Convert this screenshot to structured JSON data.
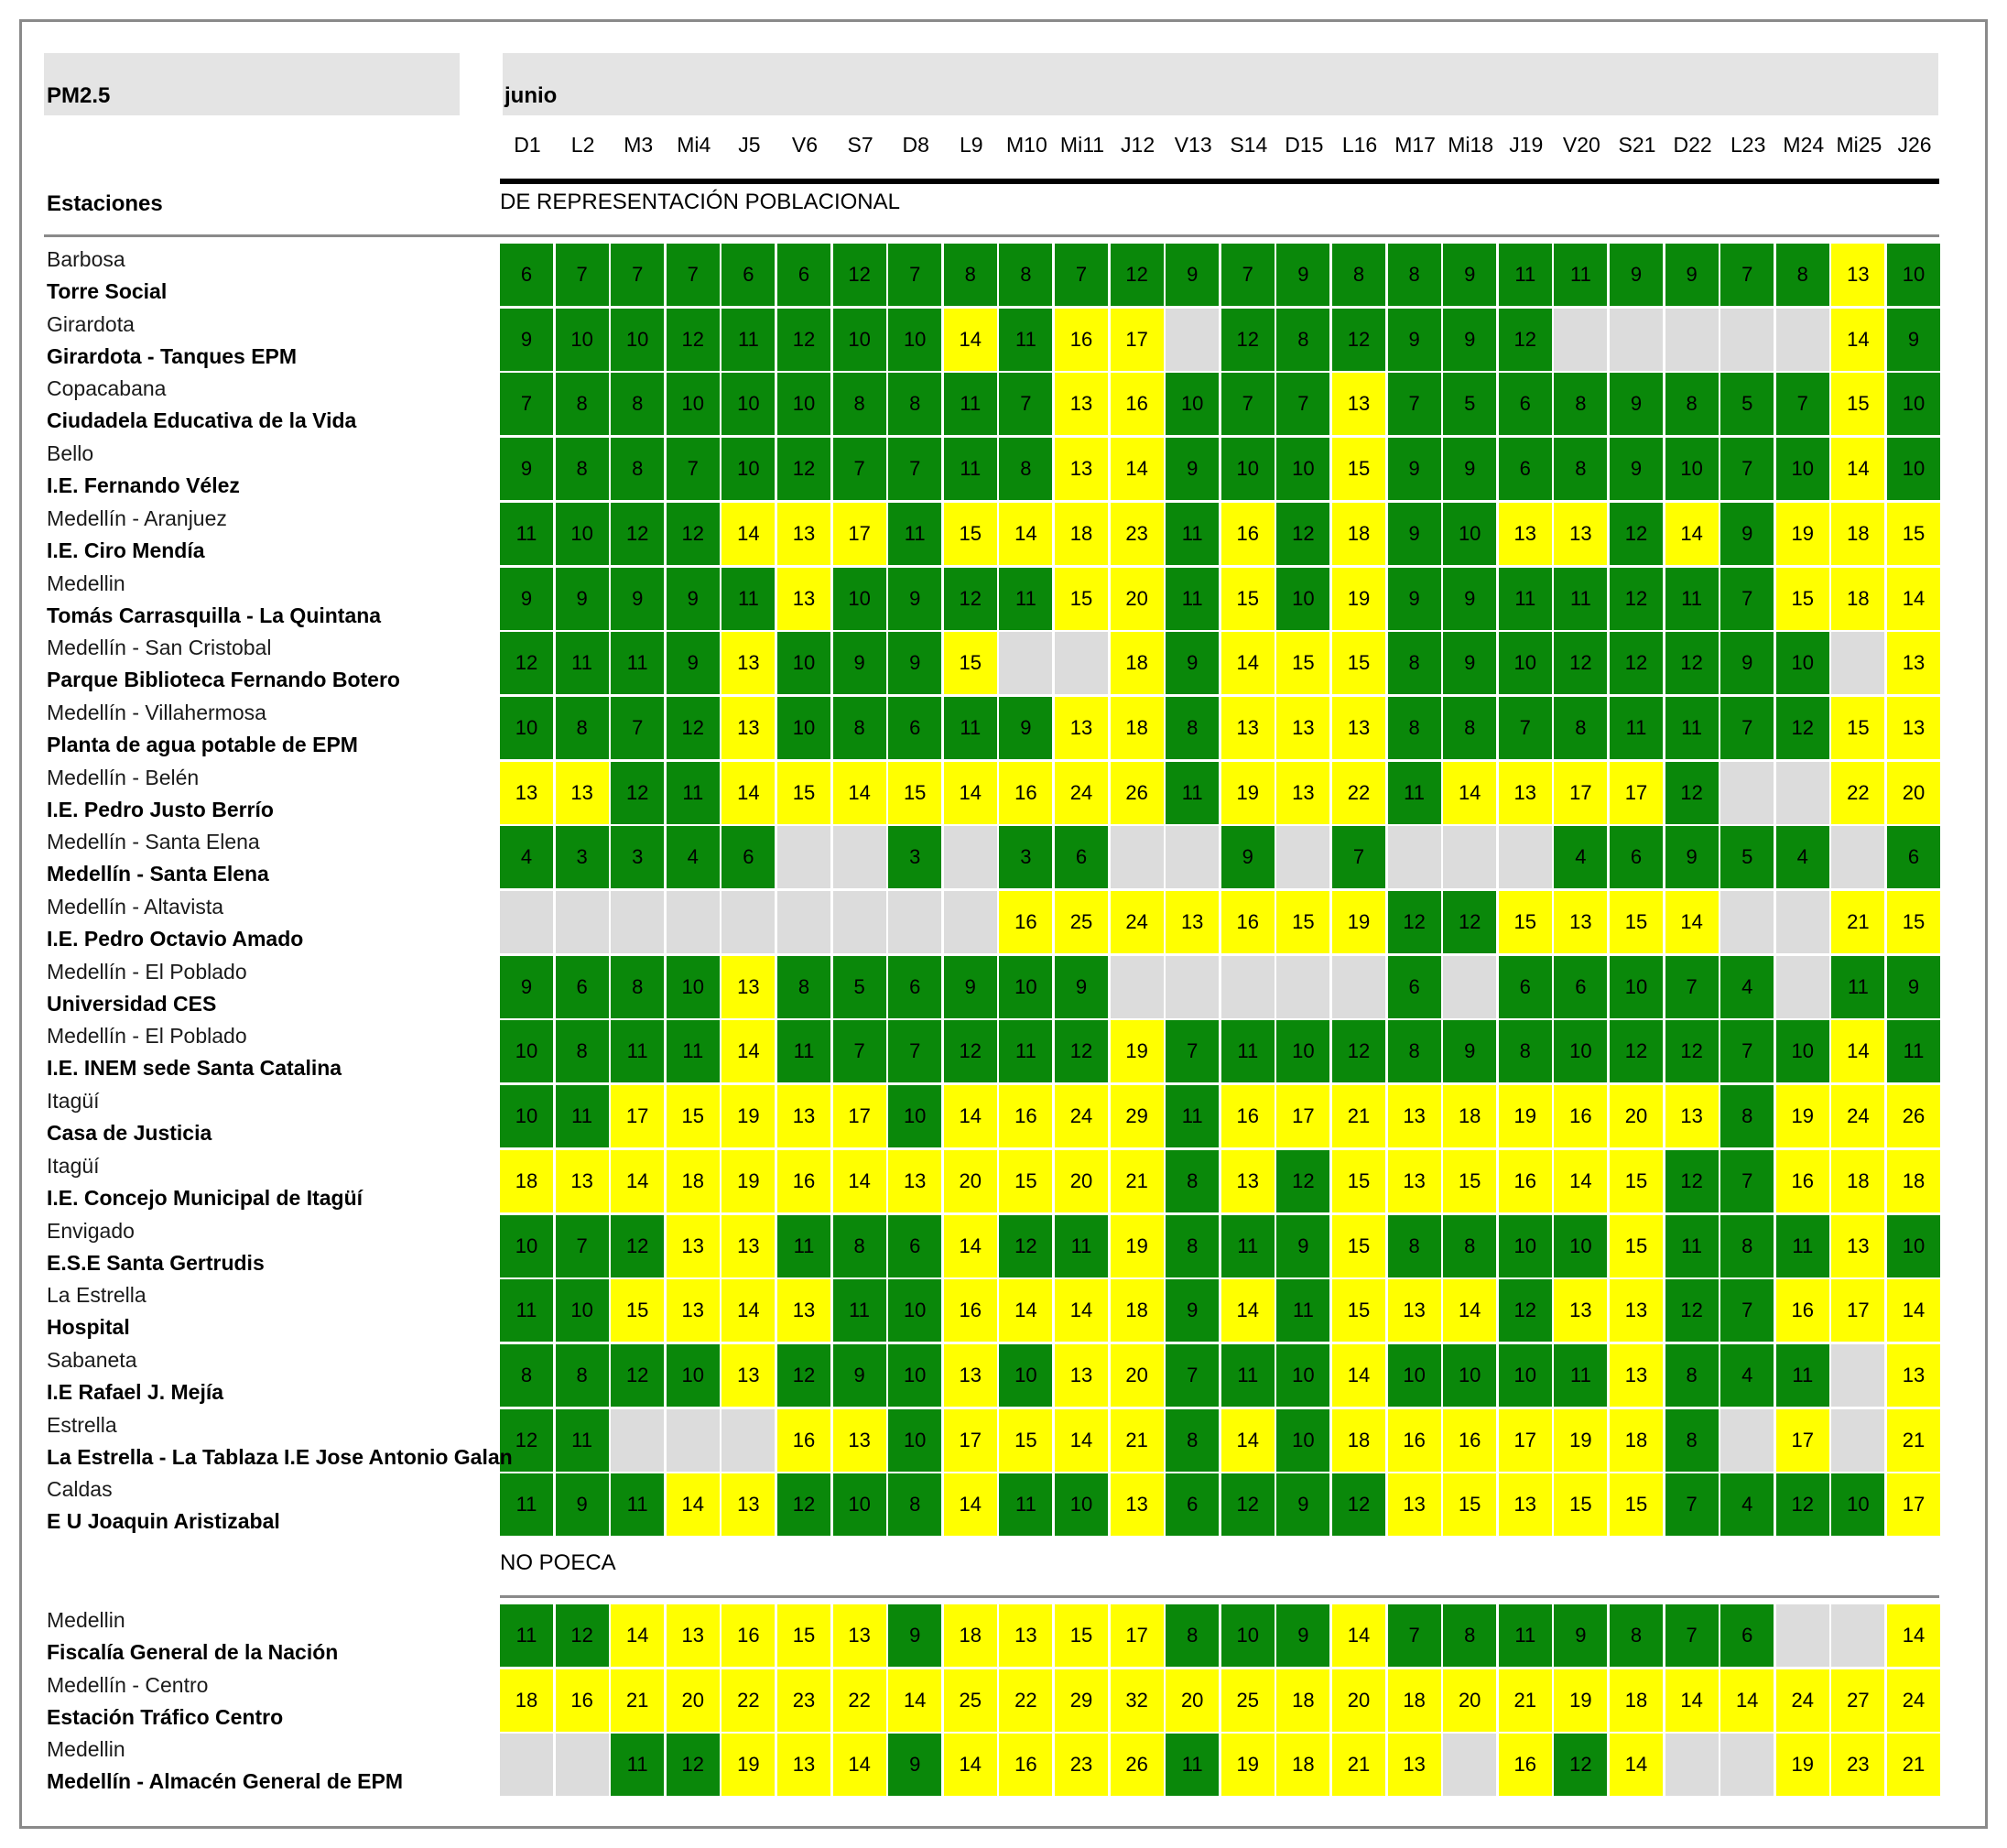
{
  "header": {
    "pollutant": "PM2.5",
    "month": "junio",
    "stations_label": "Estaciones"
  },
  "colors": {
    "green": "#0a880a",
    "yellow": "#ffff00",
    "no_data": "#dcdcdc"
  },
  "chart_data": {
    "type": "table",
    "columns": [
      "D1",
      "L2",
      "M3",
      "Mi4",
      "J5",
      "V6",
      "S7",
      "D8",
      "L9",
      "M10",
      "Mi11",
      "J12",
      "V13",
      "S14",
      "D15",
      "L16",
      "M17",
      "Mi18",
      "J19",
      "V20",
      "S21",
      "D22",
      "L23",
      "M24",
      "Mi25",
      "J26"
    ],
    "sections": [
      {
        "label": "DE REPRESENTACIÓN POBLACIONAL",
        "stations": [
          {
            "city": "Barbosa",
            "name": "Torre Social",
            "values": [
              6,
              7,
              7,
              7,
              6,
              6,
              12,
              7,
              8,
              8,
              7,
              12,
              9,
              7,
              9,
              8,
              8,
              9,
              11,
              11,
              9,
              9,
              7,
              8,
              13,
              10
            ]
          },
          {
            "city": "Girardota",
            "name": "Girardota - Tanques EPM",
            "values": [
              9,
              10,
              10,
              12,
              11,
              12,
              10,
              10,
              14,
              11,
              16,
              17,
              null,
              12,
              8,
              12,
              9,
              9,
              12,
              null,
              null,
              null,
              null,
              null,
              14,
              9
            ]
          },
          {
            "city": "Copacabana",
            "name": "Ciudadela Educativa de la Vida",
            "values": [
              7,
              8,
              8,
              10,
              10,
              10,
              8,
              8,
              11,
              7,
              13,
              16,
              10,
              7,
              7,
              13,
              7,
              5,
              6,
              8,
              9,
              8,
              5,
              7,
              15,
              10
            ]
          },
          {
            "city": "Bello",
            "name": "I.E. Fernando Vélez",
            "values": [
              9,
              8,
              8,
              7,
              10,
              12,
              7,
              7,
              11,
              8,
              13,
              14,
              9,
              10,
              10,
              15,
              9,
              9,
              6,
              8,
              9,
              10,
              7,
              10,
              14,
              10
            ]
          },
          {
            "city": "Medellín - Aranjuez",
            "name": "I.E. Ciro Mendía",
            "values": [
              11,
              10,
              12,
              12,
              14,
              13,
              17,
              11,
              15,
              14,
              18,
              23,
              11,
              16,
              12,
              18,
              9,
              10,
              13,
              13,
              12,
              14,
              9,
              19,
              18,
              15
            ]
          },
          {
            "city": "Medellin",
            "name": "Tomás Carrasquilla - La Quintana",
            "values": [
              9,
              9,
              9,
              9,
              11,
              13,
              10,
              9,
              12,
              11,
              15,
              20,
              11,
              15,
              10,
              19,
              9,
              9,
              11,
              11,
              12,
              11,
              7,
              15,
              18,
              14
            ]
          },
          {
            "city": "Medellín - San Cristobal",
            "name": "Parque Biblioteca Fernando Botero",
            "values": [
              12,
              11,
              11,
              9,
              13,
              10,
              9,
              9,
              15,
              null,
              null,
              18,
              9,
              14,
              15,
              15,
              8,
              9,
              10,
              12,
              12,
              12,
              9,
              10,
              null,
              13
            ]
          },
          {
            "city": "Medellín - Villahermosa",
            "name": "Planta de agua potable de EPM",
            "values": [
              10,
              8,
              7,
              12,
              13,
              10,
              8,
              6,
              11,
              9,
              13,
              18,
              8,
              13,
              13,
              13,
              8,
              8,
              7,
              8,
              11,
              11,
              7,
              12,
              15,
              13
            ]
          },
          {
            "city": "Medellín - Belén",
            "name": "I.E. Pedro Justo Berrío",
            "values": [
              13,
              13,
              12,
              11,
              14,
              15,
              14,
              15,
              14,
              16,
              24,
              26,
              11,
              19,
              13,
              22,
              11,
              14,
              13,
              17,
              17,
              12,
              null,
              null,
              22,
              20
            ]
          },
          {
            "city": "Medellín - Santa Elena",
            "name": "Medellín - Santa Elena",
            "values": [
              4,
              3,
              3,
              4,
              6,
              null,
              null,
              3,
              null,
              3,
              6,
              null,
              null,
              9,
              null,
              7,
              null,
              null,
              null,
              4,
              6,
              9,
              5,
              4,
              null,
              6
            ]
          },
          {
            "city": "Medellín - Altavista",
            "name": "I.E. Pedro Octavio Amado",
            "values": [
              null,
              null,
              null,
              null,
              null,
              null,
              null,
              null,
              null,
              16,
              25,
              24,
              13,
              16,
              15,
              19,
              12,
              12,
              15,
              13,
              15,
              14,
              null,
              null,
              21,
              15
            ]
          },
          {
            "city": "Medellín - El Poblado",
            "name": "Universidad CES",
            "values": [
              9,
              6,
              8,
              10,
              13,
              8,
              5,
              6,
              9,
              10,
              9,
              null,
              null,
              null,
              null,
              null,
              6,
              null,
              6,
              6,
              10,
              7,
              4,
              null,
              11,
              9
            ]
          },
          {
            "city": "Medellín - El Poblado",
            "name": "I.E. INEM sede Santa Catalina",
            "values": [
              10,
              8,
              11,
              11,
              14,
              11,
              7,
              7,
              12,
              11,
              12,
              19,
              7,
              11,
              10,
              12,
              8,
              9,
              8,
              10,
              12,
              12,
              7,
              10,
              14,
              11
            ]
          },
          {
            "city": "Itagüí",
            "name": "Casa de Justicia",
            "values": [
              10,
              11,
              17,
              15,
              19,
              13,
              17,
              10,
              14,
              16,
              24,
              29,
              11,
              16,
              17,
              21,
              13,
              18,
              19,
              16,
              20,
              13,
              8,
              19,
              24,
              26
            ]
          },
          {
            "city": "Itagüí",
            "name": "I.E. Concejo Municipal de Itagüí",
            "values": [
              18,
              13,
              14,
              18,
              19,
              16,
              14,
              13,
              20,
              15,
              20,
              21,
              8,
              13,
              12,
              15,
              13,
              15,
              16,
              14,
              15,
              12,
              7,
              16,
              18,
              18
            ]
          },
          {
            "city": "Envigado",
            "name": "E.S.E Santa Gertrudis",
            "values": [
              10,
              7,
              12,
              13,
              13,
              11,
              8,
              6,
              14,
              12,
              11,
              19,
              8,
              11,
              9,
              15,
              8,
              8,
              10,
              10,
              15,
              11,
              8,
              11,
              13,
              10
            ]
          },
          {
            "city": "La Estrella",
            "name": "Hospital",
            "values": [
              11,
              10,
              15,
              13,
              14,
              13,
              11,
              10,
              16,
              14,
              14,
              18,
              9,
              14,
              11,
              15,
              13,
              14,
              12,
              13,
              13,
              12,
              7,
              16,
              17,
              14
            ]
          },
          {
            "city": "Sabaneta",
            "name": "I.E Rafael J. Mejía",
            "values": [
              8,
              8,
              12,
              10,
              13,
              12,
              9,
              10,
              13,
              10,
              13,
              20,
              7,
              11,
              10,
              14,
              10,
              10,
              10,
              11,
              13,
              8,
              4,
              11,
              null,
              13
            ]
          },
          {
            "city": "Estrella",
            "name": "La Estrella - La Tablaza I.E Jose Antonio Galan",
            "values": [
              12,
              11,
              null,
              null,
              null,
              16,
              13,
              10,
              17,
              15,
              14,
              21,
              8,
              14,
              10,
              18,
              16,
              16,
              17,
              19,
              18,
              8,
              null,
              17,
              null,
              21
            ]
          },
          {
            "city": "Caldas",
            "name": "E U Joaquin Aristizabal",
            "values": [
              11,
              9,
              11,
              14,
              13,
              12,
              10,
              8,
              14,
              11,
              10,
              13,
              6,
              12,
              9,
              12,
              13,
              15,
              13,
              15,
              15,
              7,
              4,
              12,
              10,
              17
            ]
          }
        ]
      },
      {
        "label": "NO POECA",
        "stations": [
          {
            "city": "Medellin",
            "name": "Fiscalía General de la Nación",
            "values": [
              11,
              12,
              14,
              13,
              16,
              15,
              13,
              9,
              18,
              13,
              15,
              17,
              8,
              10,
              9,
              14,
              7,
              8,
              11,
              9,
              8,
              7,
              6,
              null,
              null,
              14
            ]
          },
          {
            "city": "Medellín - Centro",
            "name": "Estación Tráfico Centro",
            "values": [
              18,
              16,
              21,
              20,
              22,
              23,
              22,
              14,
              25,
              22,
              29,
              32,
              20,
              25,
              18,
              20,
              18,
              20,
              21,
              19,
              18,
              14,
              14,
              24,
              27,
              24
            ]
          },
          {
            "city": "Medellin",
            "name": "Medellín - Almacén General de EPM",
            "values": [
              null,
              null,
              11,
              12,
              19,
              13,
              14,
              9,
              14,
              16,
              23,
              26,
              11,
              19,
              18,
              21,
              13,
              null,
              16,
              12,
              14,
              null,
              null,
              19,
              23,
              21
            ]
          }
        ]
      }
    ]
  }
}
